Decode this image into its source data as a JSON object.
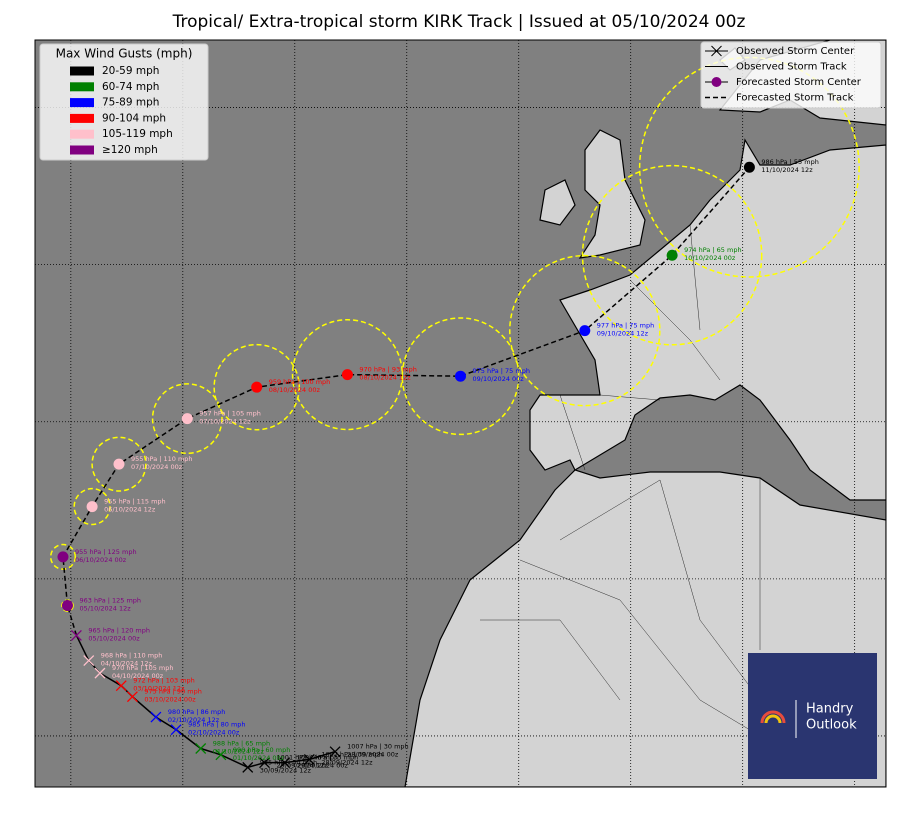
{
  "chart_data": {
    "type": "map",
    "title": "Tropical/ Extra-tropical storm KIRK Track | Issued at 05/10/2024 00z",
    "xlim": [
      -53.2,
      22.8
    ],
    "ylim": [
      16.75,
      64.3
    ],
    "xticks": [
      -50,
      -40,
      -30,
      -20,
      -10,
      0,
      10,
      20
    ],
    "yticks": [
      20,
      30,
      40,
      50,
      60
    ],
    "grid": true,
    "track_color": "#000000",
    "cone_color": "#ffff00",
    "wind_legend": {
      "title": "Max Wind Gusts (mph)",
      "items": [
        {
          "label": "20-59 mph",
          "color": "#000000"
        },
        {
          "label": "60-74 mph",
          "color": "#008000"
        },
        {
          "label": "75-89 mph",
          "color": "#0000ff"
        },
        {
          "label": "90-104 mph",
          "color": "#ff0000"
        },
        {
          "label": "105-119 mph",
          "color": "#ffc0cb"
        },
        {
          "label": "≥120 mph",
          "color": "#800080"
        }
      ]
    },
    "track_legend": {
      "items": [
        "Observed Storm Center",
        "Observed Storm Track",
        "Forecasted Storm Center",
        "Forecasted Storm Track"
      ],
      "center_color": "#800080"
    },
    "observed": {
      "lon": [
        -26.4,
        -28.7,
        -30.9,
        -32.7,
        -34.2,
        -36.6,
        -38.4,
        -40.6,
        -42.4,
        -44.5,
        -45.5,
        -47.4,
        -48.4,
        -49.5
      ],
      "lat": [
        19.0,
        18.5,
        18.3,
        18.3,
        18.0,
        18.8,
        19.2,
        20.4,
        21.2,
        22.5,
        23.2,
        24.0,
        24.8,
        26.4
      ],
      "colors": [
        "#000000",
        "#000000",
        "#000000",
        "#000000",
        "#000000",
        "#008000",
        "#008000",
        "#0000ff",
        "#0000ff",
        "#ff0000",
        "#ff0000",
        "#ffc0cb",
        "#ffc0cb",
        "#800080"
      ],
      "labels": [
        "1007 hPa | 30 mph",
        "1007 hPa | 30 mph",
        "1004 hPa | 35 mph",
        "1001 hPa | 40 mph",
        "995 hPa | 50 mph",
        "990 hPa | 60 mph",
        "988 hPa | 65 mph",
        "985 hPa | 80 mph",
        "980 hPa | 86 mph",
        "975 hPa | 90 mph",
        "972 hPa | 103 mph",
        "970 hPa | 105 mph",
        "968 hPa | 110 mph",
        "965 hPa | 120 mph"
      ],
      "times": [
        "28/09/2024 00z",
        "28/09/2024 12z",
        "29/09/2024 00z",
        "29/09/2024 12z",
        "30/09/2024 12z",
        "01/10/2024 00z",
        "01/10/2024 12z",
        "02/10/2024 00z",
        "02/10/2024 12z",
        "03/10/2024 00z",
        "03/10/2024 12z",
        "04/10/2024 00z",
        "04/10/2024 12z",
        "05/10/2024 00z"
      ]
    },
    "forecast": {
      "lon": [
        -50.3,
        -50.7,
        -48.1,
        -45.7,
        -39.6,
        -33.4,
        -25.3,
        -15.2,
        -4.1,
        3.7,
        10.6
      ],
      "lat": [
        28.3,
        31.4,
        34.6,
        37.3,
        40.2,
        42.2,
        43.0,
        42.9,
        45.8,
        50.6,
        56.2
      ],
      "cone_radius": [
        0.5,
        1.1,
        1.6,
        2.4,
        3.1,
        3.8,
        4.9,
        5.2,
        6.7,
        8.0,
        9.8
      ],
      "colors": [
        "#800080",
        "#800080",
        "#ffc0cb",
        "#ffc0cb",
        "#ffc0cb",
        "#ff0000",
        "#ff0000",
        "#0000ff",
        "#0000ff",
        "#008000",
        "#000000"
      ],
      "labels": [
        "963 hPa | 125 mph",
        "955 hPa | 125 mph",
        "955 hPa | 115 mph",
        "955 hPa | 110 mph",
        "957 hPa | 105 mph",
        "959 hPa | 100 mph",
        "970 hPa | 93 mph",
        "975 hPa | 75 mph",
        "977 hPa | 75 mph",
        "974 hPa | 65 mph",
        "986 hPa | 55 mph"
      ],
      "times": [
        "05/10/2024 12z",
        "06/10/2024 00z",
        "06/10/2024 12z",
        "07/10/2024 00z",
        "07/10/2024 12z",
        "08/10/2024 00z",
        "08/10/2024 12z",
        "09/10/2024 00z",
        "09/10/2024 12z",
        "10/10/2024 00z",
        "11/10/2024 12z"
      ]
    }
  },
  "logo": {
    "line1": "Handry",
    "line2": "Outlook"
  }
}
